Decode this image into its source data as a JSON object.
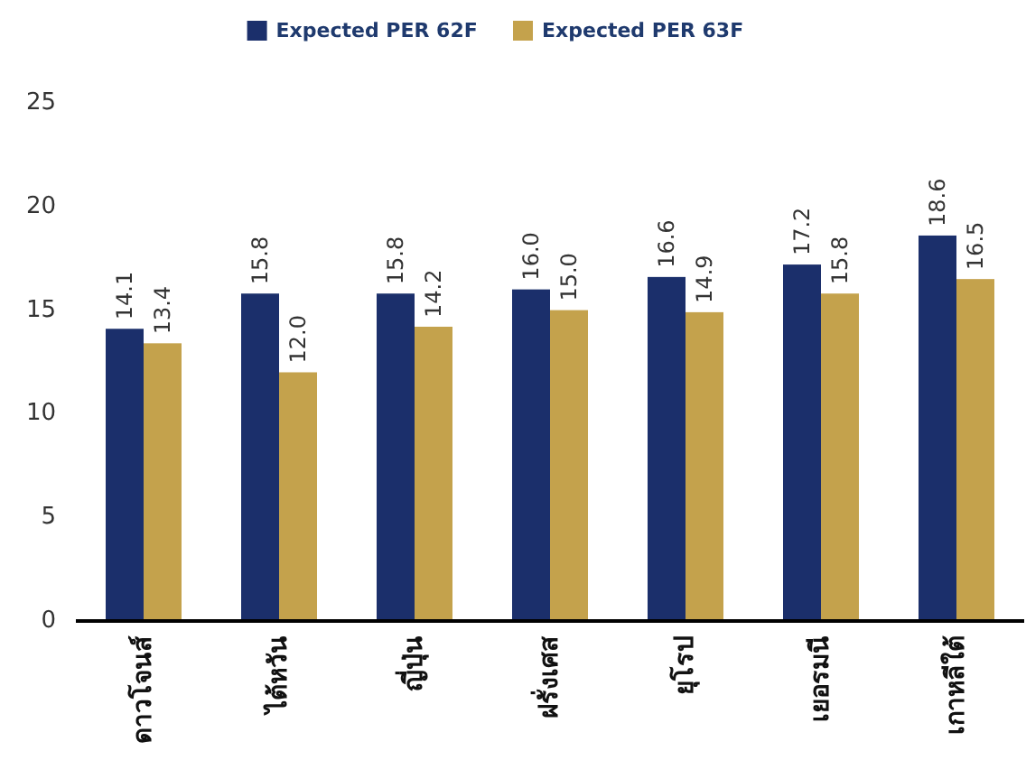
{
  "chart_data": {
    "type": "bar",
    "categories": [
      "ดาวโจนส์",
      "ไต้หวัน",
      "ญี่ปุ่น",
      "ฝรั่งเศส",
      "ยุโรป",
      "เยอรมนี",
      "เกาหลีใต้"
    ],
    "series": [
      {
        "name": "Expected PER 62F",
        "color": "#1b2f6b",
        "values": [
          14.1,
          15.8,
          15.8,
          16.0,
          16.6,
          17.2,
          18.6
        ],
        "value_labels": [
          "14.1",
          "15.8",
          "15.8",
          "16.0",
          "16.6",
          "17.2",
          "18.6"
        ]
      },
      {
        "name": "Expected PER 63F",
        "color": "#c4a24c",
        "values": [
          13.4,
          12.0,
          14.2,
          15.0,
          14.9,
          15.8,
          16.5
        ],
        "value_labels": [
          "13.4",
          "12.0",
          "14.2",
          "15.0",
          "14.9",
          "15.8",
          "16.5"
        ]
      }
    ],
    "ylim": [
      0,
      25
    ],
    "yticks": [
      0,
      5,
      10,
      15,
      20,
      25
    ],
    "legend": "top"
  }
}
